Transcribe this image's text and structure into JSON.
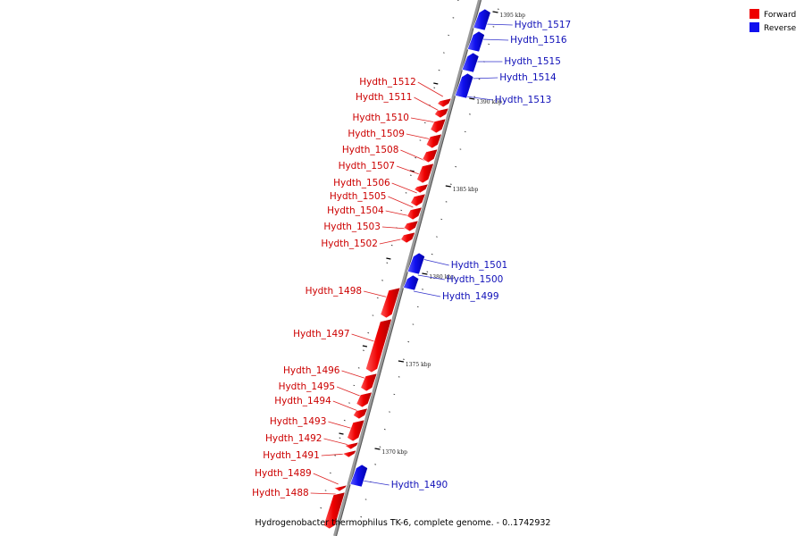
{
  "legend": {
    "items": [
      {
        "label": "Forward",
        "color": "#ee0000"
      },
      {
        "label": "Reverse",
        "color": "#1010ee"
      }
    ]
  },
  "caption": "Hydrogenobacter thermophilus TK-6, complete genome. - 0..1742932",
  "axis": {
    "ticks": [
      {
        "label": "1395 kbp",
        "kbp": 1395
      },
      {
        "label": "1390 kbp",
        "kbp": 1390
      },
      {
        "label": "1385 kbp",
        "kbp": 1385
      },
      {
        "label": "1380 kbp",
        "kbp": 1380
      },
      {
        "label": "1375 kbp",
        "kbp": 1375
      },
      {
        "label": "1370 kbp",
        "kbp": 1370
      }
    ]
  },
  "genes": {
    "forward": [
      {
        "name": "Hydth_1512"
      },
      {
        "name": "Hydth_1511"
      },
      {
        "name": "Hydth_1510"
      },
      {
        "name": "Hydth_1509"
      },
      {
        "name": "Hydth_1508"
      },
      {
        "name": "Hydth_1507"
      },
      {
        "name": "Hydth_1506"
      },
      {
        "name": "Hydth_1505"
      },
      {
        "name": "Hydth_1504"
      },
      {
        "name": "Hydth_1503"
      },
      {
        "name": "Hydth_1502"
      },
      {
        "name": "Hydth_1498"
      },
      {
        "name": "Hydth_1497"
      },
      {
        "name": "Hydth_1496"
      },
      {
        "name": "Hydth_1495"
      },
      {
        "name": "Hydth_1494"
      },
      {
        "name": "Hydth_1493"
      },
      {
        "name": "Hydth_1492"
      },
      {
        "name": "Hydth_1491"
      },
      {
        "name": "Hydth_1489"
      },
      {
        "name": "Hydth_1488"
      }
    ],
    "reverse": [
      {
        "name": "Hydth_1517"
      },
      {
        "name": "Hydth_1516"
      },
      {
        "name": "Hydth_1515"
      },
      {
        "name": "Hydth_1514"
      },
      {
        "name": "Hydth_1513"
      },
      {
        "name": "Hydth_1501"
      },
      {
        "name": "Hydth_1500"
      },
      {
        "name": "Hydth_1499"
      },
      {
        "name": "Hydth_1490"
      }
    ]
  }
}
